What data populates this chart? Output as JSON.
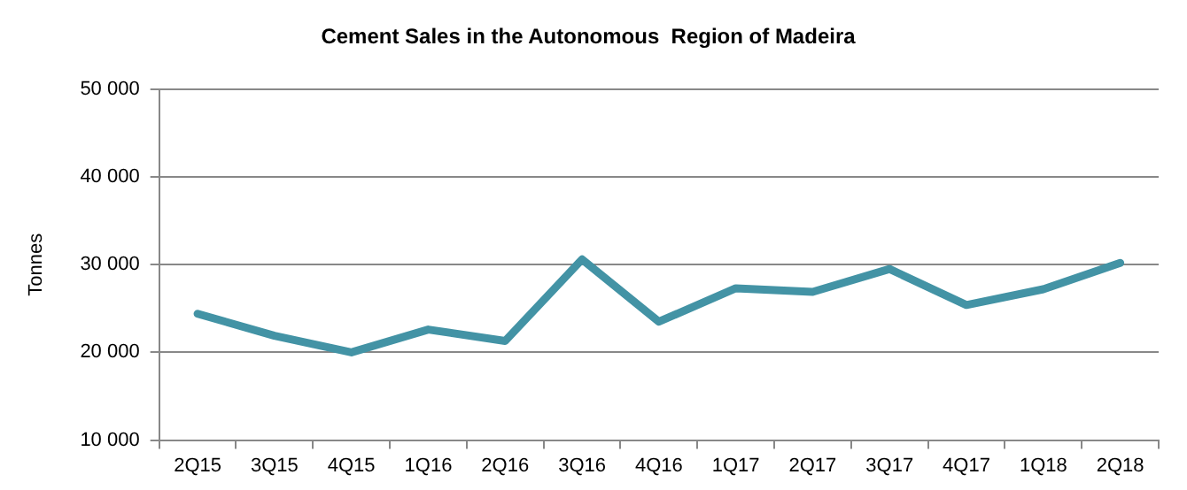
{
  "chart_data": {
    "type": "line",
    "title": "Cement Sales in the Autonomous  Region of Madeira",
    "ylabel": "Tonnes",
    "categories": [
      "2Q15",
      "3Q15",
      "4Q15",
      "1Q16",
      "2Q16",
      "3Q16",
      "4Q16",
      "1Q17",
      "2Q17",
      "3Q17",
      "4Q17",
      "1Q18",
      "2Q18"
    ],
    "series": [
      {
        "color": "#4393a5",
        "values": [
          24400,
          21900,
          20000,
          22600,
          21300,
          30600,
          23500,
          27300,
          26900,
          29500,
          25400,
          27200,
          30200
        ]
      }
    ],
    "ylim": [
      10000,
      50000
    ],
    "yticks": [
      {
        "value": 10000,
        "label": "10 000"
      },
      {
        "value": 20000,
        "label": "20 000"
      },
      {
        "value": 30000,
        "label": "30 000"
      },
      {
        "value": 40000,
        "label": "40 000"
      },
      {
        "value": 50000,
        "label": "50 000"
      }
    ],
    "grid": "y",
    "legend": false,
    "marker": "none",
    "line_style": "solid"
  }
}
